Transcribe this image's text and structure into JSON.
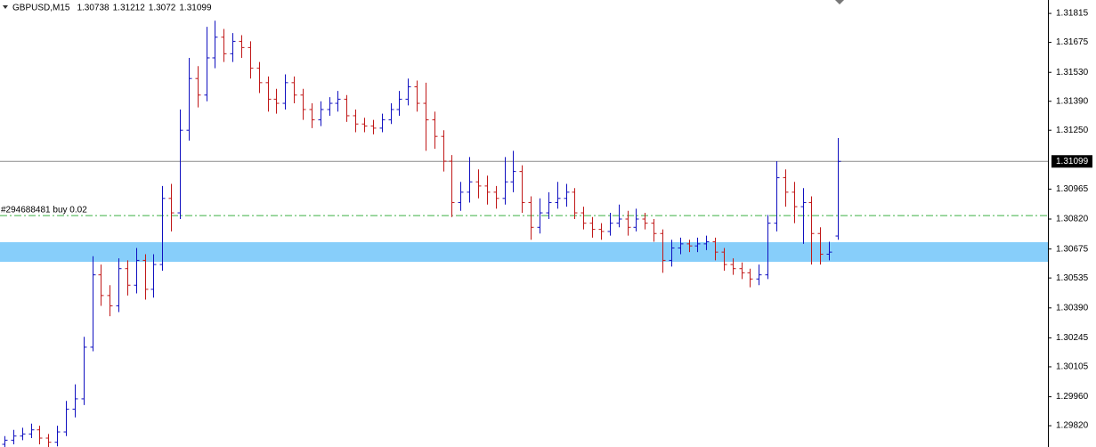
{
  "chart_data": {
    "type": "ohlc",
    "symbol": "GBPUSD,M15",
    "up_color": "#1010c0",
    "down_color": "#c01818",
    "ylim": [
      1.29717,
      1.3188
    ],
    "yticks": [
      {
        "value": 1.31815,
        "label": "1.31815"
      },
      {
        "value": 1.31675,
        "label": "1.31675"
      },
      {
        "value": 1.3153,
        "label": "1.31530"
      },
      {
        "value": 1.3139,
        "label": "1.31390"
      },
      {
        "value": 1.3125,
        "label": "1.31250"
      },
      {
        "value": 1.30965,
        "label": "1.30965"
      },
      {
        "value": 1.3082,
        "label": "1.30820"
      },
      {
        "value": 1.30675,
        "label": "1.30675"
      },
      {
        "value": 1.30535,
        "label": "1.30535"
      },
      {
        "value": 1.3039,
        "label": "1.30390"
      },
      {
        "value": 1.30245,
        "label": "1.30245"
      },
      {
        "value": 1.30105,
        "label": "1.30105"
      },
      {
        "value": 1.2996,
        "label": "1.29960"
      },
      {
        "value": 1.2982,
        "label": "1.29820"
      }
    ],
    "zone": {
      "from": 1.30613,
      "to": 1.30708,
      "color": "#87cefa"
    },
    "order": {
      "label": "#294688481 buy 0.02",
      "price": 1.30837,
      "color": "#3cb043"
    },
    "open": [
      1.2973,
      1.2975,
      1.2977,
      1.2978,
      1.298,
      1.2976,
      1.2974,
      1.2979,
      1.299,
      1.2995,
      1.302,
      1.3055,
      1.3045,
      1.304,
      1.3058,
      1.305,
      1.3062,
      1.3048,
      1.306,
      1.3092,
      1.3085,
      1.3125,
      1.315,
      1.3142,
      1.316,
      1.317,
      1.3162,
      1.3168,
      1.3165,
      1.3155,
      1.3148,
      1.314,
      1.3138,
      1.3148,
      1.3142,
      1.3135,
      1.313,
      1.3135,
      1.3138,
      1.314,
      1.3132,
      1.3128,
      1.3127,
      1.3126,
      1.313,
      1.3135,
      1.314,
      1.3146,
      1.3138,
      1.313,
      1.3122,
      1.311,
      1.309,
      1.3095,
      1.31,
      1.3098,
      1.3095,
      1.3092,
      1.31,
      1.3105,
      1.309,
      1.3078,
      1.3085,
      1.309,
      1.3092,
      1.3095,
      1.3085,
      1.308,
      1.3077,
      1.3076,
      1.308,
      1.3082,
      1.3078,
      1.3082,
      1.308,
      1.3075,
      1.3062,
      1.3068,
      1.307,
      1.3069,
      1.307,
      1.3071,
      1.3066,
      1.306,
      1.3058,
      1.3056,
      1.3053,
      1.3055,
      1.308,
      1.3102,
      1.3095,
      1.3088,
      1.309,
      1.3075,
      1.3065,
      1.30738
    ],
    "high": [
      1.2977,
      1.298,
      1.2981,
      1.2983,
      1.2982,
      1.2978,
      1.2982,
      1.2994,
      1.3002,
      1.3025,
      1.3064,
      1.306,
      1.305,
      1.3063,
      1.3062,
      1.3068,
      1.3065,
      1.3065,
      1.3098,
      1.3099,
      1.3135,
      1.316,
      1.3156,
      1.3175,
      1.3178,
      1.3174,
      1.3172,
      1.3171,
      1.3168,
      1.3158,
      1.3151,
      1.3145,
      1.3152,
      1.3151,
      1.3145,
      1.3138,
      1.3139,
      1.3141,
      1.3144,
      1.3142,
      1.3135,
      1.3131,
      1.313,
      1.3133,
      1.3138,
      1.3144,
      1.315,
      1.3149,
      1.3148,
      1.3134,
      1.3125,
      1.3113,
      1.31,
      1.3112,
      1.3106,
      1.3103,
      1.3098,
      1.3112,
      1.3115,
      1.3108,
      1.3093,
      1.3092,
      1.3095,
      1.31,
      1.3099,
      1.3097,
      1.3088,
      1.3083,
      1.308,
      1.3085,
      1.3089,
      1.3086,
      1.3087,
      1.3085,
      1.3082,
      1.3077,
      1.3072,
      1.3073,
      1.3072,
      1.3073,
      1.3074,
      1.3073,
      1.3068,
      1.3063,
      1.3061,
      1.3058,
      1.306,
      1.3084,
      1.311,
      1.3106,
      1.31,
      1.3097,
      1.3093,
      1.3078,
      1.3071,
      1.31212
    ],
    "low": [
      1.2971,
      1.2973,
      1.2975,
      1.2976,
      1.2973,
      1.2971,
      1.2972,
      1.2977,
      1.2986,
      1.2992,
      1.3018,
      1.304,
      1.3035,
      1.3037,
      1.3045,
      1.3046,
      1.3043,
      1.3044,
      1.3057,
      1.3076,
      1.3082,
      1.312,
      1.3136,
      1.3139,
      1.3155,
      1.3158,
      1.3158,
      1.316,
      1.315,
      1.3143,
      1.3134,
      1.3133,
      1.3135,
      1.3138,
      1.313,
      1.3126,
      1.3127,
      1.3132,
      1.3134,
      1.3129,
      1.3124,
      1.3124,
      1.3123,
      1.3124,
      1.3128,
      1.3132,
      1.3137,
      1.3134,
      1.3115,
      1.3116,
      1.3105,
      1.3083,
      1.3086,
      1.309,
      1.3092,
      1.3089,
      1.3087,
      1.3089,
      1.3095,
      1.3085,
      1.3072,
      1.3075,
      1.3082,
      1.3087,
      1.3088,
      1.3082,
      1.3077,
      1.3073,
      1.3072,
      1.3074,
      1.3078,
      1.3074,
      1.3076,
      1.3077,
      1.3071,
      1.3056,
      1.3059,
      1.3065,
      1.3066,
      1.3066,
      1.3067,
      1.3062,
      1.3057,
      1.3055,
      1.3053,
      1.3049,
      1.305,
      1.3053,
      1.3076,
      1.3088,
      1.308,
      1.307,
      1.306,
      1.306,
      1.3062,
      1.3072
    ],
    "close": [
      1.2975,
      1.2977,
      1.2978,
      1.298,
      1.2976,
      1.2974,
      1.2979,
      1.299,
      1.2995,
      1.302,
      1.3055,
      1.3045,
      1.304,
      1.3058,
      1.305,
      1.3062,
      1.3048,
      1.306,
      1.3092,
      1.3085,
      1.3125,
      1.315,
      1.3142,
      1.316,
      1.317,
      1.3162,
      1.3168,
      1.3165,
      1.3155,
      1.3148,
      1.314,
      1.3138,
      1.3148,
      1.3142,
      1.3135,
      1.313,
      1.3135,
      1.3138,
      1.314,
      1.3132,
      1.3128,
      1.3127,
      1.3126,
      1.313,
      1.3135,
      1.314,
      1.3146,
      1.3138,
      1.313,
      1.3122,
      1.311,
      1.309,
      1.3095,
      1.31,
      1.3098,
      1.3095,
      1.3092,
      1.31,
      1.3105,
      1.309,
      1.3078,
      1.3085,
      1.309,
      1.3092,
      1.3095,
      1.3085,
      1.308,
      1.3077,
      1.3076,
      1.308,
      1.3082,
      1.3078,
      1.3082,
      1.308,
      1.3075,
      1.3062,
      1.3068,
      1.307,
      1.3069,
      1.307,
      1.3071,
      1.3066,
      1.306,
      1.3058,
      1.3056,
      1.3053,
      1.3055,
      1.308,
      1.3102,
      1.3095,
      1.3088,
      1.309,
      1.3075,
      1.3065,
      1.3066,
      1.31099
    ]
  }
}
